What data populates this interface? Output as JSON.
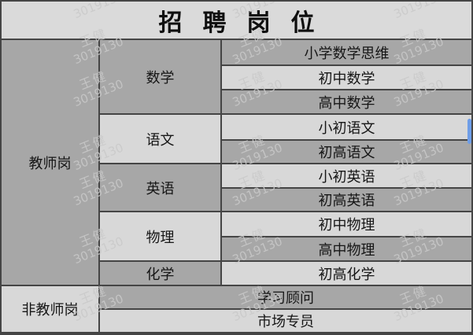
{
  "title": "招聘岗位",
  "watermark": {
    "line1": "王健",
    "line2": "3019130"
  },
  "colors": {
    "cell_dark": "#a7a7a7",
    "cell_light": "#d8d8d8",
    "title_background": "#dadada",
    "border": "#454545",
    "watermark_gray": "#c9c9c9",
    "scrollbar_blue": "#6f9ee8"
  },
  "teacher": {
    "label": "教师岗",
    "categories": [
      {
        "name": "数学",
        "subs": [
          "小学数学思维",
          "初中数学",
          "高中数学"
        ]
      },
      {
        "name": "语文",
        "subs": [
          "小初语文",
          "初高语文"
        ]
      },
      {
        "name": "英语",
        "subs": [
          "小初英语",
          "初高英语"
        ]
      },
      {
        "name": "物理",
        "subs": [
          "初中物理",
          "高中物理"
        ]
      },
      {
        "name": "化学",
        "subs": [
          "初高化学"
        ]
      }
    ]
  },
  "non_teacher": {
    "label": "非教师岗",
    "subs": [
      "学习顾问",
      "市场专员"
    ]
  }
}
